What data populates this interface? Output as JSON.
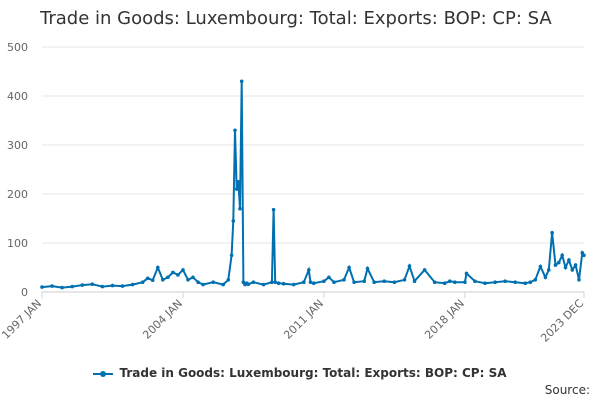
{
  "chart_data": {
    "type": "line",
    "title": "Trade in Goods: Luxembourg: Total: Exports: BOP: CP: SA",
    "xlabel": "",
    "ylabel": "",
    "ylim": [
      0,
      500
    ],
    "yticks": [
      0,
      100,
      200,
      300,
      400,
      500
    ],
    "xticks": [
      "1997 JAN",
      "2004 JAN",
      "2011 JAN",
      "2018 JAN",
      "2023 DEC"
    ],
    "x_range": [
      "1997-01",
      "2023-12"
    ],
    "grid": true,
    "legend_position": "bottom",
    "color": "#0070b0",
    "series": [
      {
        "name": "Trade in Goods: Luxembourg: Total: Exports: BOP: CP: SA",
        "x": [
          "1997-01",
          "1997-07",
          "1998-01",
          "1998-07",
          "1999-01",
          "1999-07",
          "2000-01",
          "2000-07",
          "2001-01",
          "2001-07",
          "2002-01",
          "2002-04",
          "2002-07",
          "2002-10",
          "2003-01",
          "2003-04",
          "2003-07",
          "2003-10",
          "2004-01",
          "2004-04",
          "2004-07",
          "2004-10",
          "2005-01",
          "2005-07",
          "2006-01",
          "2006-04",
          "2006-06",
          "2006-07",
          "2006-08",
          "2006-09",
          "2006-10",
          "2006-11",
          "2006-12",
          "2007-01",
          "2007-02",
          "2007-03",
          "2007-04",
          "2007-07",
          "2008-01",
          "2008-06",
          "2008-07",
          "2008-08",
          "2008-10",
          "2009-01",
          "2009-07",
          "2010-01",
          "2010-04",
          "2010-05",
          "2010-07",
          "2011-01",
          "2011-04",
          "2011-07",
          "2012-01",
          "2012-04",
          "2012-07",
          "2013-01",
          "2013-03",
          "2013-07",
          "2014-01",
          "2014-07",
          "2015-01",
          "2015-04",
          "2015-07",
          "2016-01",
          "2016-07",
          "2017-01",
          "2017-04",
          "2017-07",
          "2018-01",
          "2018-02",
          "2018-07",
          "2019-01",
          "2019-07",
          "2020-01",
          "2020-07",
          "2021-01",
          "2021-04",
          "2021-07",
          "2021-10",
          "2022-01",
          "2022-03",
          "2022-05",
          "2022-07",
          "2022-09",
          "2022-11",
          "2023-01",
          "2023-03",
          "2023-05",
          "2023-07",
          "2023-09",
          "2023-11",
          "2023-12"
        ],
        "values": [
          10,
          12,
          9,
          11,
          14,
          16,
          11,
          13,
          12,
          15,
          20,
          28,
          24,
          50,
          25,
          30,
          40,
          35,
          45,
          25,
          30,
          20,
          15,
          20,
          15,
          25,
          75,
          145,
          330,
          210,
          225,
          170,
          430,
          20,
          15,
          18,
          16,
          20,
          15,
          20,
          168,
          20,
          18,
          17,
          15,
          20,
          45,
          20,
          18,
          22,
          30,
          20,
          25,
          50,
          20,
          22,
          48,
          20,
          22,
          20,
          25,
          53,
          22,
          45,
          20,
          18,
          22,
          20,
          20,
          38,
          22,
          18,
          20,
          22,
          20,
          18,
          20,
          25,
          52,
          30,
          45,
          121,
          55,
          60,
          75,
          50,
          65,
          45,
          55,
          25,
          80,
          75
        ]
      }
    ]
  },
  "legend": {
    "label": "Trade in Goods: Luxembourg: Total: Exports: BOP: CP: SA"
  },
  "source": {
    "label": "Source:"
  }
}
